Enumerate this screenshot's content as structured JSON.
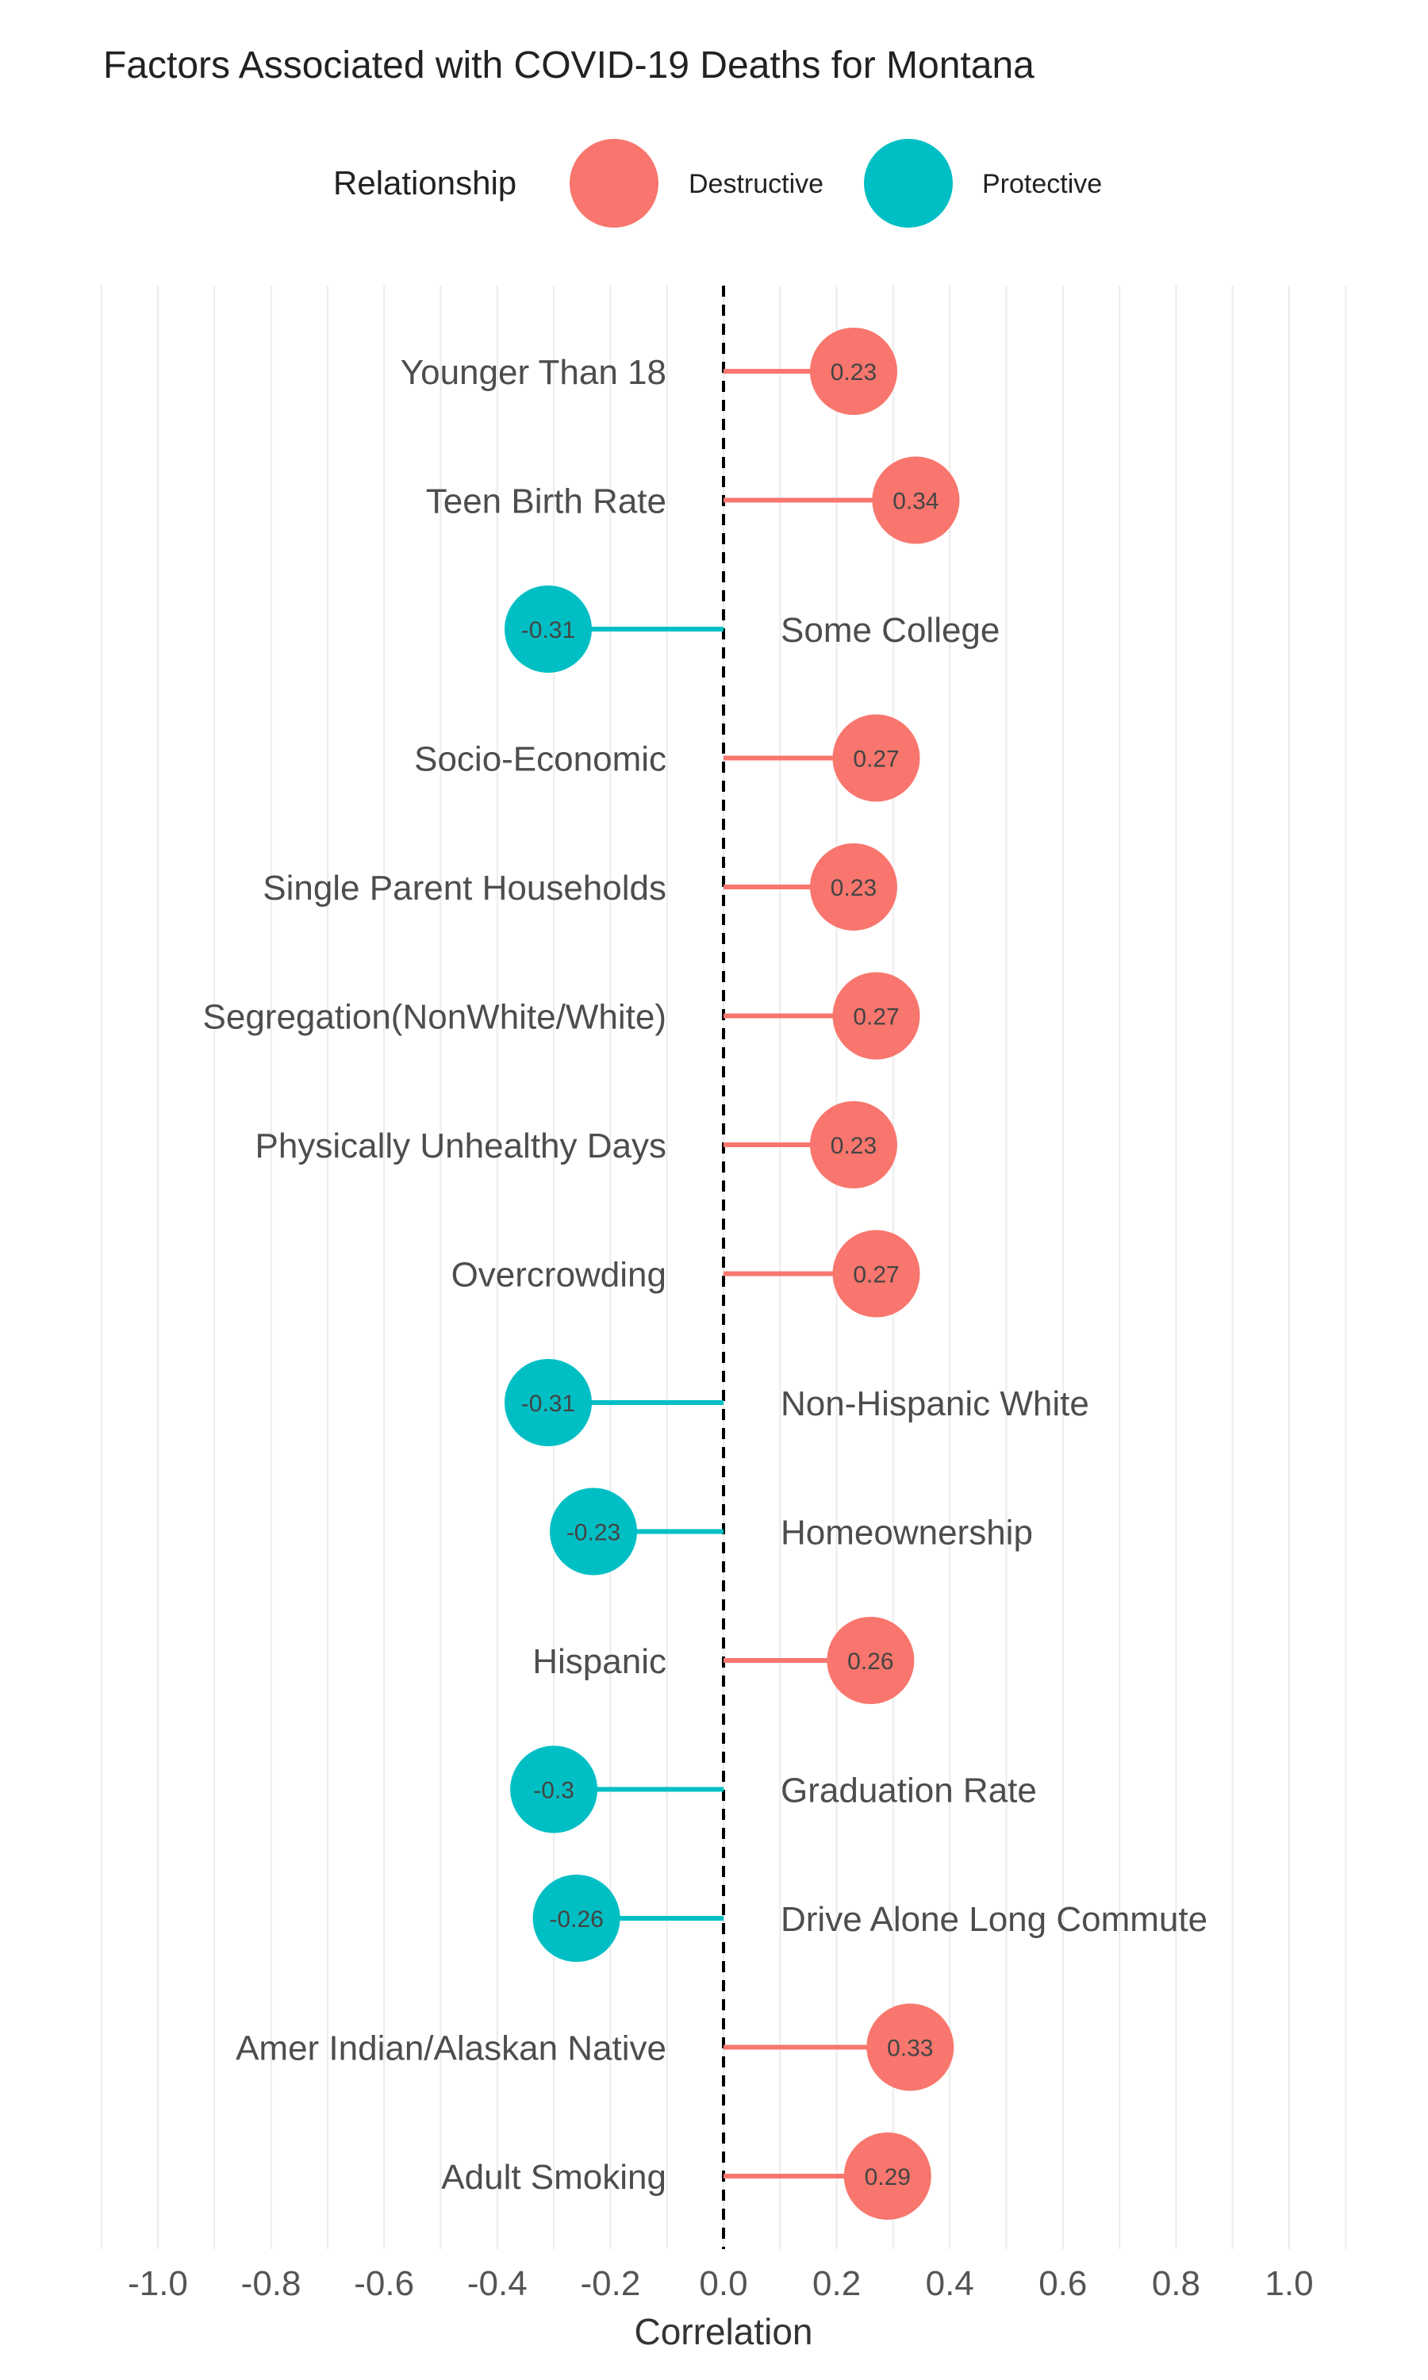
{
  "chart_data": {
    "type": "lollipop",
    "title": "Factors Associated with COVID-19 Deaths for Montana",
    "xlabel": "Correlation",
    "ylabel": "",
    "xlim": [
      -1.1,
      1.1
    ],
    "x_ticks": [
      "-1.0",
      "-0.8",
      "-0.6",
      "-0.4",
      "-0.2",
      "0.0",
      "0.2",
      "0.4",
      "0.6",
      "0.8",
      "1.0"
    ],
    "x_tick_values": [
      -1.0,
      -0.8,
      -0.6,
      -0.4,
      -0.2,
      0.0,
      0.2,
      0.4,
      0.6,
      0.8,
      1.0
    ],
    "reference_line": 0,
    "grid": true,
    "legend": {
      "title": "Relationship",
      "position": "top",
      "entries": [
        {
          "name": "Destructive",
          "color": "#F8766D"
        },
        {
          "name": "Protective",
          "color": "#00BFC4"
        }
      ]
    },
    "categories": [
      "Younger Than 18",
      "Teen Birth Rate",
      "Some College",
      "Socio-Economic",
      "Single Parent Households",
      "Segregation(NonWhite/White)",
      "Physically Unhealthy Days",
      "Overcrowding",
      "Non-Hispanic White",
      "Homeownership",
      "Hispanic",
      "Graduation Rate",
      "Drive Alone Long Commute",
      "Amer Indian/Alaskan Native",
      "Adult Smoking"
    ],
    "values": [
      0.23,
      0.34,
      -0.31,
      0.27,
      0.23,
      0.27,
      0.23,
      0.27,
      -0.31,
      -0.23,
      0.26,
      -0.3,
      -0.26,
      0.33,
      0.29
    ],
    "value_labels": [
      "0.23",
      "0.34",
      "-0.31",
      "0.27",
      "0.23",
      "0.27",
      "0.23",
      "0.27",
      "-0.31",
      "-0.23",
      "0.26",
      "-0.3",
      "-0.26",
      "0.33",
      "0.29"
    ],
    "relationship": [
      "Destructive",
      "Destructive",
      "Protective",
      "Destructive",
      "Destructive",
      "Destructive",
      "Destructive",
      "Destructive",
      "Protective",
      "Protective",
      "Destructive",
      "Protective",
      "Protective",
      "Destructive",
      "Destructive"
    ]
  }
}
